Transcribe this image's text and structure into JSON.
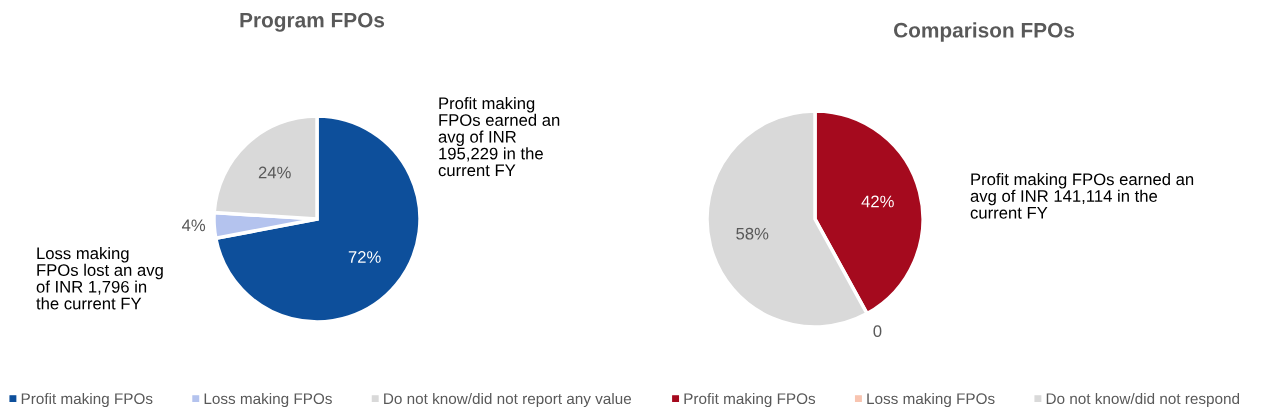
{
  "chart_data": [
    {
      "type": "pie",
      "title": "Program FPOs",
      "categories": [
        "Profit making FPOs",
        "Loss making FPOs",
        "Do not know/did not report any value"
      ],
      "values": [
        72,
        4,
        24
      ],
      "colors": [
        "#0d4f9b",
        "#b4c3ee",
        "#d9d9d9"
      ],
      "value_labels": [
        "72%",
        "4%",
        "24%"
      ],
      "legend": "bottom",
      "annotations": [
        "Profit making\nFPOs earned an\navg of INR\n195,229 in the\ncurrent FY",
        "Loss making\nFPOs lost an avg\nof INR 1,796 in\nthe current FY"
      ]
    },
    {
      "type": "pie",
      "title": "Comparison FPOs",
      "categories": [
        "Profit making FPOs",
        "Loss making FPOs",
        "Do not know/did not respond"
      ],
      "values": [
        42,
        0,
        58
      ],
      "colors": [
        "#a50a1e",
        "#f8c4b0",
        "#d9d9d9"
      ],
      "value_labels": [
        "42%",
        "0",
        "58%"
      ],
      "legend": "bottom",
      "annotations": [
        "Profit making FPOs earned an\navg of INR 141,114 in the\ncurrent FY"
      ]
    }
  ]
}
